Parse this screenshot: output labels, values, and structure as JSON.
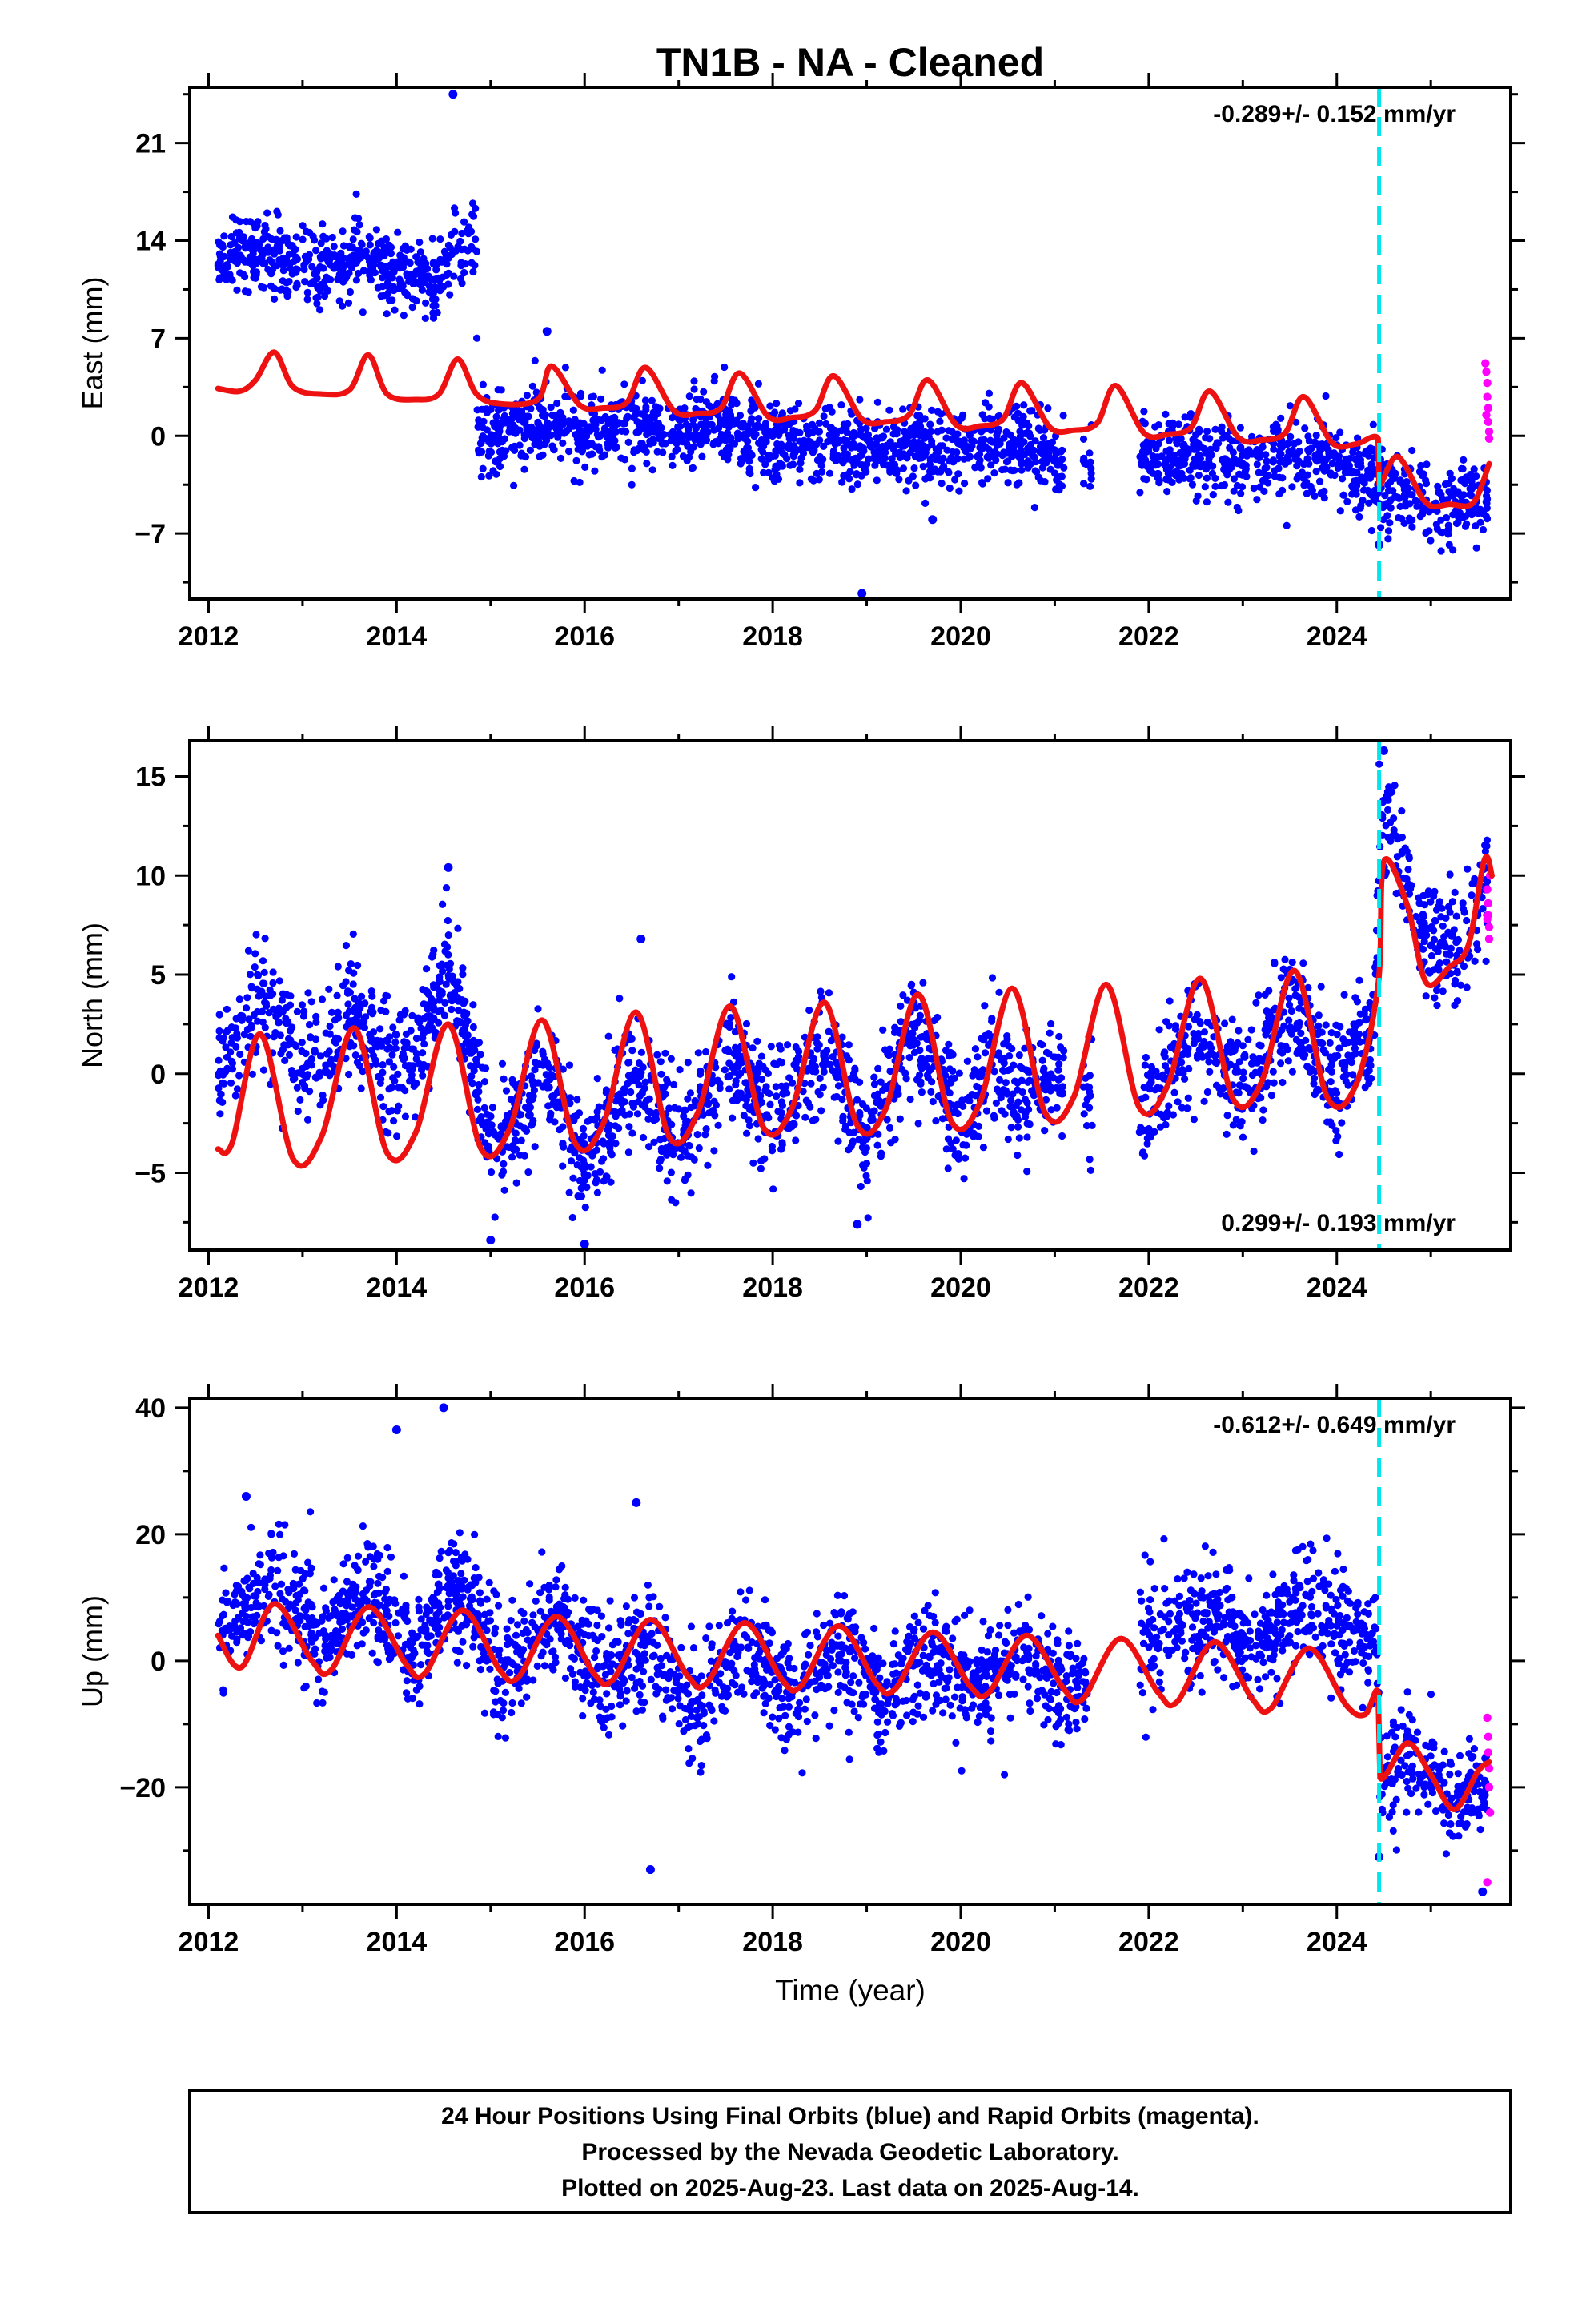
{
  "figure": {
    "title": "TN1B  - NA - Cleaned",
    "xlabel": "Time (year)",
    "footer_lines": [
      "24 Hour Positions Using Final Orbits (blue) and Rapid Orbits (magenta).",
      "Processed by the Nevada Geodetic Laboratory.",
      "Plotted on 2025-Aug-23. Last data on 2025-Aug-14."
    ],
    "colors": {
      "final": "#0000ff",
      "rapid": "#ff00ff",
      "model": "#ee1111",
      "event": "#00e5ee",
      "axis": "#000000"
    }
  },
  "chart_data": [
    {
      "type": "scatter",
      "name": "east",
      "ylabel": "East (mm)",
      "rate_label": "-0.289+/- 0.152 mm/yr",
      "rate_position": "top-right",
      "xlim": [
        2011.8,
        2025.85
      ],
      "ylim": [
        -11.7,
        25
      ],
      "xticks": [
        2012,
        2014,
        2016,
        2018,
        2020,
        2022,
        2024
      ],
      "yticks": [
        -7,
        0,
        7,
        14,
        21
      ],
      "yminor_step": 3.5,
      "event_line_x": 2024.45,
      "final_orbit_trend": [
        [
          2012.1,
          12.5
        ],
        [
          2012.5,
          13.3
        ],
        [
          2012.8,
          12.5
        ],
        [
          2013.2,
          11.8
        ],
        [
          2013.6,
          12.8
        ],
        [
          2014.0,
          11.5
        ],
        [
          2014.4,
          10.8
        ],
        [
          2014.7,
          13.5
        ],
        [
          2014.85,
          14.5
        ],
        [
          2014.86,
          0.0
        ],
        [
          2015.5,
          1.0
        ],
        [
          2016.0,
          0.5
        ],
        [
          2016.5,
          0.8
        ],
        [
          2017.0,
          0.4
        ],
        [
          2017.5,
          0.6
        ],
        [
          2018.0,
          -0.5
        ],
        [
          2018.5,
          -0.3
        ],
        [
          2019.0,
          -1.0
        ],
        [
          2019.5,
          -0.8
        ],
        [
          2020.0,
          -0.8
        ],
        [
          2020.5,
          -0.5
        ],
        [
          2021.1,
          -1.5
        ],
        [
          2021.3,
          -1.3
        ],
        [
          2021.9,
          -1.2
        ],
        [
          2022.5,
          -1.3
        ],
        [
          2023.0,
          -2.0
        ],
        [
          2023.5,
          -1.5
        ],
        [
          2024.0,
          -2.0
        ],
        [
          2024.4,
          -3.0
        ],
        [
          2024.46,
          -3.5
        ],
        [
          2025.0,
          -4.8
        ],
        [
          2025.6,
          -4.5
        ]
      ],
      "final_orbit_scatter": 1.4,
      "final_orbit_gaps": [
        [
          2021.1,
          2021.3
        ],
        [
          2021.4,
          2021.9
        ]
      ],
      "final_orbit_outliers": [
        [
          2014.6,
          24.5
        ],
        [
          2018.95,
          -11.3
        ],
        [
          2015.6,
          7.5
        ],
        [
          2024.45,
          -7.8
        ],
        [
          2019.7,
          -6.0
        ]
      ],
      "rapid_orbit": [
        [
          2025.58,
          5.2
        ],
        [
          2025.59,
          4.6
        ],
        [
          2025.6,
          3.8
        ],
        [
          2025.6,
          2.8
        ],
        [
          2025.61,
          2.0
        ],
        [
          2025.61,
          1.0
        ],
        [
          2025.62,
          0.3
        ],
        [
          2025.62,
          -0.2
        ],
        [
          2025.59,
          1.5
        ]
      ],
      "model_line": [
        [
          2012.1,
          3.4
        ],
        [
          2012.33,
          3.2
        ],
        [
          2012.5,
          4.0
        ],
        [
          2012.7,
          6.0
        ],
        [
          2012.9,
          3.5
        ],
        [
          2013.2,
          3.0
        ],
        [
          2013.5,
          3.3
        ],
        [
          2013.7,
          5.8
        ],
        [
          2013.9,
          3.0
        ],
        [
          2014.2,
          2.6
        ],
        [
          2014.45,
          3.0
        ],
        [
          2014.65,
          5.5
        ],
        [
          2014.85,
          3.0
        ],
        [
          2015.1,
          2.3
        ],
        [
          2015.5,
          2.6
        ],
        [
          2015.65,
          5.0
        ],
        [
          2015.95,
          2.2
        ],
        [
          2016.2,
          2.0
        ],
        [
          2016.45,
          2.4
        ],
        [
          2016.65,
          4.9
        ],
        [
          2016.95,
          1.8
        ],
        [
          2017.2,
          1.6
        ],
        [
          2017.45,
          2.0
        ],
        [
          2017.65,
          4.5
        ],
        [
          2017.95,
          1.4
        ],
        [
          2018.2,
          1.3
        ],
        [
          2018.45,
          1.8
        ],
        [
          2018.65,
          4.3
        ],
        [
          2018.95,
          1.2
        ],
        [
          2019.2,
          1.0
        ],
        [
          2019.45,
          1.5
        ],
        [
          2019.65,
          4.0
        ],
        [
          2019.95,
          0.8
        ],
        [
          2020.2,
          0.7
        ],
        [
          2020.45,
          1.2
        ],
        [
          2020.65,
          3.8
        ],
        [
          2020.95,
          0.6
        ],
        [
          2021.2,
          0.4
        ],
        [
          2021.45,
          0.9
        ],
        [
          2021.65,
          3.6
        ],
        [
          2021.95,
          0.2
        ],
        [
          2022.2,
          0.1
        ],
        [
          2022.45,
          0.6
        ],
        [
          2022.65,
          3.2
        ],
        [
          2022.95,
          -0.1
        ],
        [
          2023.2,
          -0.3
        ],
        [
          2023.45,
          0.2
        ],
        [
          2023.65,
          2.8
        ],
        [
          2023.95,
          -0.5
        ],
        [
          2024.2,
          -0.6
        ],
        [
          2024.44,
          -0.2
        ],
        [
          2024.45,
          -3.5
        ],
        [
          2024.65,
          -1.5
        ],
        [
          2024.95,
          -4.8
        ],
        [
          2025.2,
          -4.9
        ],
        [
          2025.45,
          -4.8
        ],
        [
          2025.62,
          -2.0
        ]
      ]
    },
    {
      "type": "scatter",
      "name": "north",
      "ylabel": "North (mm)",
      "rate_label": "0.299+/- 0.193 mm/yr",
      "rate_position": "bottom-right",
      "xlim": [
        2011.8,
        2025.85
      ],
      "ylim": [
        -8.9,
        16.8
      ],
      "xticks": [
        2012,
        2014,
        2016,
        2018,
        2020,
        2022,
        2024
      ],
      "yticks": [
        -5,
        0,
        5,
        10,
        15
      ],
      "yminor_step": 2.5,
      "event_line_x": 2024.45,
      "final_orbit_trend": [
        [
          2012.1,
          0.0
        ],
        [
          2012.4,
          2.5
        ],
        [
          2012.6,
          4.0
        ],
        [
          2012.9,
          1.0
        ],
        [
          2013.2,
          0.5
        ],
        [
          2013.5,
          3.0
        ],
        [
          2013.9,
          0.5
        ],
        [
          2014.2,
          1.0
        ],
        [
          2014.55,
          5.5
        ],
        [
          2014.85,
          0.0
        ],
        [
          2015.0,
          -4.0
        ],
        [
          2015.4,
          -2.0
        ],
        [
          2015.55,
          0.5
        ],
        [
          2016.0,
          -5.0
        ],
        [
          2016.5,
          0.5
        ],
        [
          2017.0,
          -4.0
        ],
        [
          2017.5,
          1.5
        ],
        [
          2018.0,
          -2.5
        ],
        [
          2018.5,
          1.5
        ],
        [
          2019.0,
          -3.5
        ],
        [
          2019.5,
          2.5
        ],
        [
          2020.0,
          -2.5
        ],
        [
          2020.3,
          1.0
        ],
        [
          2020.6,
          -1.0
        ],
        [
          2021.2,
          -0.5
        ],
        [
          2021.3,
          -1.0
        ],
        [
          2021.9,
          -2.0
        ],
        [
          2022.0,
          -1.5
        ],
        [
          2022.5,
          2.5
        ],
        [
          2023.0,
          -1.0
        ],
        [
          2023.5,
          3.5
        ],
        [
          2024.0,
          -0.5
        ],
        [
          2024.4,
          2.0
        ],
        [
          2024.45,
          12.5
        ],
        [
          2024.55,
          13.5
        ],
        [
          2024.9,
          7.0
        ],
        [
          2025.3,
          6.0
        ],
        [
          2025.6,
          10.0
        ]
      ],
      "final_orbit_scatter": 1.5,
      "final_orbit_gaps": [
        [
          2021.1,
          2021.3
        ],
        [
          2021.4,
          2021.9
        ]
      ],
      "final_orbit_outliers": [
        [
          2014.55,
          10.4
        ],
        [
          2016.6,
          6.8
        ],
        [
          2016.0,
          -8.6
        ],
        [
          2015.0,
          -8.4
        ],
        [
          2024.5,
          16.3
        ],
        [
          2018.9,
          -7.6
        ]
      ],
      "rapid_orbit": [
        [
          2025.6,
          9.3
        ],
        [
          2025.61,
          8.6
        ],
        [
          2025.61,
          8.0
        ],
        [
          2025.62,
          7.4
        ],
        [
          2025.62,
          6.8
        ],
        [
          2025.63,
          10.0
        ],
        [
          2025.6,
          7.8
        ]
      ],
      "model_line": [
        [
          2012.1,
          -3.8
        ],
        [
          2012.25,
          -3.5
        ],
        [
          2012.55,
          2.0
        ],
        [
          2012.9,
          -4.3
        ],
        [
          2013.2,
          -3.2
        ],
        [
          2013.55,
          2.3
        ],
        [
          2013.9,
          -4.0
        ],
        [
          2014.2,
          -3.0
        ],
        [
          2014.55,
          2.5
        ],
        [
          2014.9,
          -3.8
        ],
        [
          2015.2,
          -2.8
        ],
        [
          2015.55,
          2.7
        ],
        [
          2015.9,
          -3.5
        ],
        [
          2016.2,
          -2.5
        ],
        [
          2016.55,
          3.1
        ],
        [
          2016.9,
          -3.2
        ],
        [
          2017.2,
          -2.0
        ],
        [
          2017.55,
          3.4
        ],
        [
          2017.9,
          -2.7
        ],
        [
          2018.2,
          -1.8
        ],
        [
          2018.55,
          3.6
        ],
        [
          2018.9,
          -2.6
        ],
        [
          2019.2,
          -1.8
        ],
        [
          2019.55,
          4.0
        ],
        [
          2019.9,
          -2.4
        ],
        [
          2020.2,
          -1.5
        ],
        [
          2020.55,
          4.3
        ],
        [
          2020.9,
          -2.0
        ],
        [
          2021.2,
          -1.2
        ],
        [
          2021.55,
          4.5
        ],
        [
          2021.9,
          -1.7
        ],
        [
          2022.2,
          -0.6
        ],
        [
          2022.55,
          4.8
        ],
        [
          2022.9,
          -1.3
        ],
        [
          2023.2,
          -0.4
        ],
        [
          2023.55,
          5.2
        ],
        [
          2023.9,
          -1.2
        ],
        [
          2024.2,
          -0.6
        ],
        [
          2024.44,
          4.5
        ],
        [
          2024.5,
          10.7
        ],
        [
          2024.75,
          8.5
        ],
        [
          2024.95,
          4.6
        ],
        [
          2025.2,
          5.4
        ],
        [
          2025.4,
          6.5
        ],
        [
          2025.57,
          10.8
        ],
        [
          2025.65,
          10.0
        ]
      ]
    },
    {
      "type": "scatter",
      "name": "up",
      "ylabel": "Up (mm)",
      "rate_label": "-0.612+/- 0.649 mm/yr",
      "rate_position": "top-right",
      "xlim": [
        2011.8,
        2025.85
      ],
      "ylim": [
        -38.5,
        41.5
      ],
      "xticks": [
        2012,
        2014,
        2016,
        2018,
        2020,
        2022,
        2024
      ],
      "yticks": [
        -20,
        0,
        20,
        40
      ],
      "yminor_step": 10,
      "event_line_x": 2024.45,
      "final_orbit_trend": [
        [
          2012.1,
          6.0
        ],
        [
          2012.4,
          9.0
        ],
        [
          2012.7,
          12.0
        ],
        [
          2013.2,
          3.0
        ],
        [
          2013.7,
          12.0
        ],
        [
          2014.2,
          2.0
        ],
        [
          2014.6,
          13.0
        ],
        [
          2015.2,
          -2.0
        ],
        [
          2015.7,
          8.0
        ],
        [
          2016.2,
          -3.0
        ],
        [
          2016.6,
          4.0
        ],
        [
          2017.2,
          -8.0
        ],
        [
          2017.7,
          3.0
        ],
        [
          2018.2,
          -6.0
        ],
        [
          2018.7,
          2.0
        ],
        [
          2019.2,
          -7.0
        ],
        [
          2019.7,
          2.0
        ],
        [
          2020.2,
          -5.0
        ],
        [
          2020.7,
          1.0
        ],
        [
          2021.3,
          -6.0
        ],
        [
          2021.9,
          3.0
        ],
        [
          2022.2,
          5.0
        ],
        [
          2022.7,
          6.0
        ],
        [
          2023.2,
          2.0
        ],
        [
          2023.7,
          10.0
        ],
        [
          2024.2,
          5.0
        ],
        [
          2024.44,
          2.0
        ],
        [
          2024.46,
          -18.0
        ],
        [
          2024.8,
          -14.0
        ],
        [
          2025.2,
          -22.0
        ],
        [
          2025.6,
          -18.0
        ]
      ],
      "final_orbit_scatter": 4.5,
      "final_orbit_gaps": [
        [
          2021.35,
          2021.9
        ]
      ],
      "final_orbit_outliers": [
        [
          2014.5,
          40.0
        ],
        [
          2014.0,
          36.5
        ],
        [
          2016.7,
          -33.0
        ],
        [
          2024.45,
          -31.0
        ],
        [
          2016.55,
          25.0
        ],
        [
          2012.4,
          26.0
        ],
        [
          2025.55,
          -36.5
        ]
      ],
      "rapid_orbit": [
        [
          2025.6,
          -9.0
        ],
        [
          2025.61,
          -12.0
        ],
        [
          2025.61,
          -14.5
        ],
        [
          2025.62,
          -17.0
        ],
        [
          2025.62,
          -20.0
        ],
        [
          2025.63,
          -24.0
        ],
        [
          2025.6,
          -35.0
        ]
      ],
      "model_line": [
        [
          2012.1,
          4.0
        ],
        [
          2012.35,
          -1.0
        ],
        [
          2012.7,
          9.0
        ],
        [
          2013.1,
          0.0
        ],
        [
          2013.3,
          -1.5
        ],
        [
          2013.7,
          8.5
        ],
        [
          2014.1,
          -0.5
        ],
        [
          2014.3,
          -2.0
        ],
        [
          2014.7,
          8.0
        ],
        [
          2015.1,
          -1.5
        ],
        [
          2015.3,
          -2.5
        ],
        [
          2015.7,
          7.0
        ],
        [
          2016.1,
          -2.0
        ],
        [
          2016.3,
          -3.0
        ],
        [
          2016.7,
          6.5
        ],
        [
          2017.1,
          -2.5
        ],
        [
          2017.3,
          -3.5
        ],
        [
          2017.7,
          6.0
        ],
        [
          2018.1,
          -3.0
        ],
        [
          2018.3,
          -4.0
        ],
        [
          2018.7,
          5.5
        ],
        [
          2019.1,
          -3.5
        ],
        [
          2019.3,
          -4.5
        ],
        [
          2019.7,
          4.5
        ],
        [
          2020.1,
          -4.0
        ],
        [
          2020.3,
          -5.0
        ],
        [
          2020.7,
          4.0
        ],
        [
          2021.1,
          -4.5
        ],
        [
          2021.3,
          -6.0
        ],
        [
          2021.7,
          3.5
        ],
        [
          2022.1,
          -5.0
        ],
        [
          2022.3,
          -6.5
        ],
        [
          2022.7,
          3.0
        ],
        [
          2023.1,
          -6.0
        ],
        [
          2023.3,
          -7.5
        ],
        [
          2023.7,
          2.0
        ],
        [
          2024.1,
          -7.0
        ],
        [
          2024.3,
          -8.5
        ],
        [
          2024.44,
          -5.0
        ],
        [
          2024.46,
          -18.5
        ],
        [
          2024.75,
          -13.0
        ],
        [
          2025.0,
          -18.0
        ],
        [
          2025.25,
          -23.5
        ],
        [
          2025.5,
          -17.5
        ],
        [
          2025.62,
          -16.0
        ]
      ]
    }
  ]
}
